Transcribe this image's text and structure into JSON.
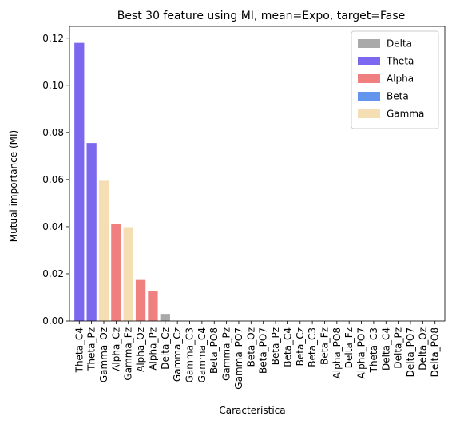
{
  "chart_data": {
    "type": "bar",
    "title": "Best 30 feature using MI, mean=Expo, target=Fase",
    "xlabel": "Característica",
    "ylabel": "Mutual importance (MI)",
    "ylim": [
      0,
      0.125
    ],
    "yticks": [
      0.0,
      0.02,
      0.04,
      0.06,
      0.08,
      0.1,
      0.12
    ],
    "ytick_labels": [
      "0.00",
      "0.02",
      "0.04",
      "0.06",
      "0.08",
      "0.10",
      "0.12"
    ],
    "legend_position": "top-right",
    "legend": [
      {
        "name": "Delta",
        "color": "#a9a9a9"
      },
      {
        "name": "Theta",
        "color": "#7b68ee"
      },
      {
        "name": "Alpha",
        "color": "#f08080"
      },
      {
        "name": "Beta",
        "color": "#6495ed"
      },
      {
        "name": "Gamma",
        "color": "#f5deb3"
      }
    ],
    "bars": [
      {
        "category": "Theta_C4",
        "value": 0.118,
        "band": "Theta"
      },
      {
        "category": "Theta_Pz",
        "value": 0.0755,
        "band": "Theta"
      },
      {
        "category": "Gamma_Oz",
        "value": 0.0595,
        "band": "Gamma"
      },
      {
        "category": "Alpha_Cz",
        "value": 0.041,
        "band": "Alpha"
      },
      {
        "category": "Gamma_Fz",
        "value": 0.0398,
        "band": "Gamma"
      },
      {
        "category": "Alpha_Oz",
        "value": 0.0174,
        "band": "Alpha"
      },
      {
        "category": "Alpha_Pz",
        "value": 0.0127,
        "band": "Alpha"
      },
      {
        "category": "Delta_Cz",
        "value": 0.003,
        "band": "Delta"
      },
      {
        "category": "Gamma_Cz",
        "value": 0,
        "band": "Gamma"
      },
      {
        "category": "Gamma_C3",
        "value": 0,
        "band": "Gamma"
      },
      {
        "category": "Gamma_C4",
        "value": 0,
        "band": "Gamma"
      },
      {
        "category": "Beta_PO8",
        "value": 0,
        "band": "Beta"
      },
      {
        "category": "Gamma_Pz",
        "value": 0,
        "band": "Gamma"
      },
      {
        "category": "Gamma_PO7",
        "value": 0,
        "band": "Gamma"
      },
      {
        "category": "Beta_Oz",
        "value": 0,
        "band": "Beta"
      },
      {
        "category": "Beta_PO7",
        "value": 0,
        "band": "Beta"
      },
      {
        "category": "Beta_Pz",
        "value": 0,
        "band": "Beta"
      },
      {
        "category": "Beta_C4",
        "value": 0,
        "band": "Beta"
      },
      {
        "category": "Beta_Cz",
        "value": 0,
        "band": "Beta"
      },
      {
        "category": "Beta_C3",
        "value": 0,
        "band": "Beta"
      },
      {
        "category": "Beta_Fz",
        "value": 0,
        "band": "Beta"
      },
      {
        "category": "Alpha_PO8",
        "value": 0,
        "band": "Alpha"
      },
      {
        "category": "Delta_Fz",
        "value": 0,
        "band": "Delta"
      },
      {
        "category": "Alpha_PO7",
        "value": 0,
        "band": "Alpha"
      },
      {
        "category": "Theta_C3",
        "value": 0,
        "band": "Theta"
      },
      {
        "category": "Delta_C4",
        "value": 0,
        "band": "Delta"
      },
      {
        "category": "Delta_Pz",
        "value": 0,
        "band": "Delta"
      },
      {
        "category": "Delta_PO7",
        "value": 0,
        "band": "Delta"
      },
      {
        "category": "Delta_Oz",
        "value": 0,
        "band": "Delta"
      },
      {
        "category": "Delta_PO8",
        "value": 0,
        "band": "Delta"
      }
    ]
  }
}
